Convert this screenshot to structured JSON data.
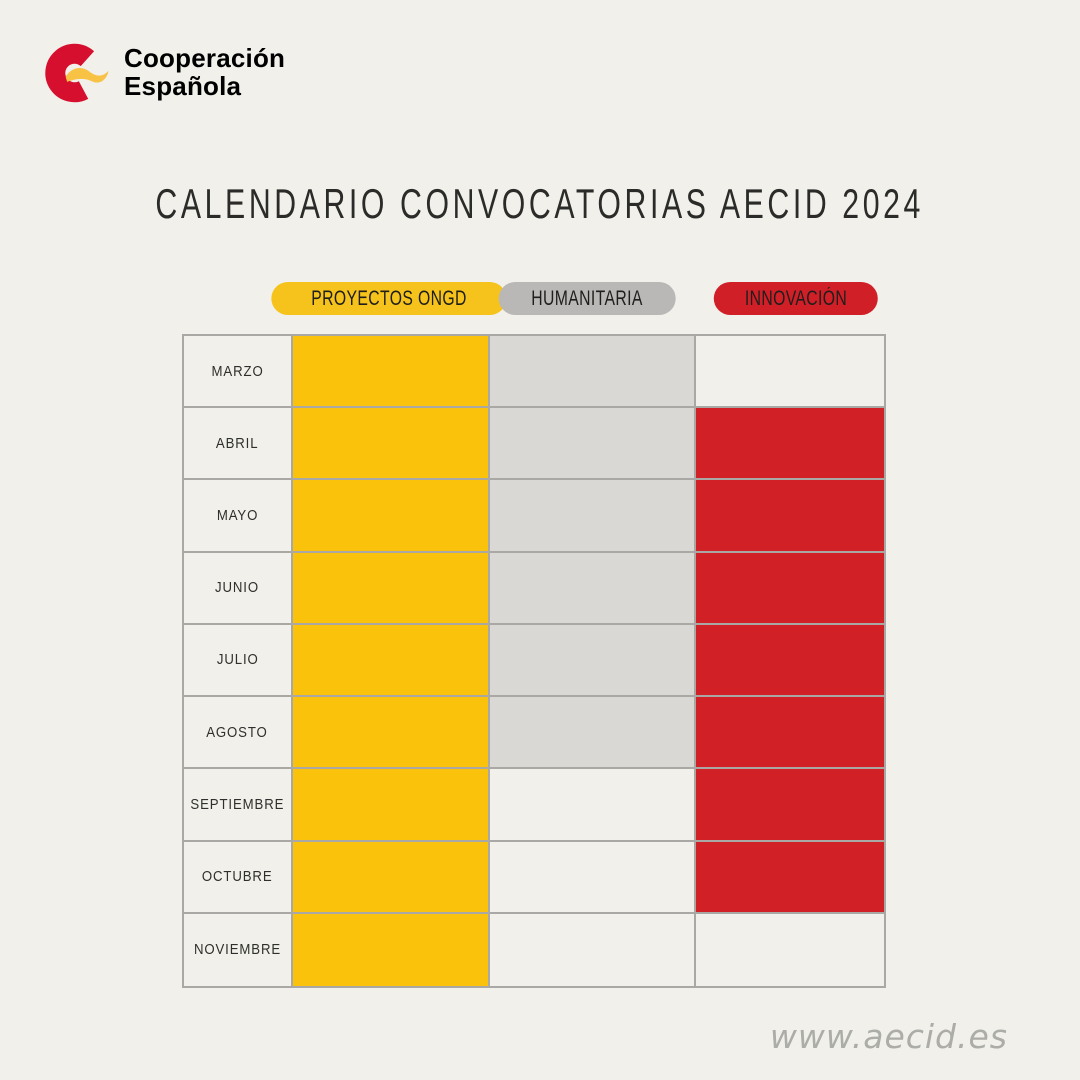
{
  "page": {
    "background": "#F1F0EA"
  },
  "header": {
    "logo": {
      "brand_line1": "Cooperación",
      "brand_line2": "Española",
      "c_red": "#D60F2F",
      "flag_yellow": "#F8C245",
      "text_red": "#D4143A"
    }
  },
  "title": {
    "text": "CALENDARIO CONVOCATORIAS AECID 2024"
  },
  "legend": {
    "items": [
      {
        "label": "PROYECTOS ONGD",
        "color": "#F5C31B"
      },
      {
        "label": "HUMANITARIA",
        "color": "#B9B8B6"
      },
      {
        "label": "INNOVACIÓN",
        "color": "#D11F28"
      }
    ]
  },
  "footer": {
    "website": "www.aecid.es"
  },
  "chart_data": {
    "type": "table",
    "title": "CALENDARIO CONVOCATORIAS AECID 2024",
    "categories": [
      "MARZO",
      "ABRIL",
      "MAYO",
      "JUNIO",
      "JULIO",
      "AGOSTO",
      "SEPTIEMBRE",
      "OCTUBRE",
      "NOVIEMBRE"
    ],
    "series": [
      {
        "name": "PROYECTOS ONGD",
        "color": "#FBC20C",
        "active_months": [
          "MARZO",
          "ABRIL",
          "MAYO",
          "JUNIO",
          "JULIO",
          "AGOSTO",
          "SEPTIEMBRE",
          "OCTUBRE",
          "NOVIEMBRE"
        ]
      },
      {
        "name": "HUMANITARIA",
        "color": "#D9D8D5",
        "active_months": [
          "MARZO",
          "ABRIL",
          "MAYO",
          "JUNIO",
          "JULIO",
          "AGOSTO"
        ]
      },
      {
        "name": "INNOVACIÓN",
        "color": "#D22027",
        "active_months": [
          "ABRIL",
          "MAYO",
          "JUNIO",
          "JULIO",
          "AGOSTO",
          "SEPTIEMBRE",
          "OCTUBRE"
        ]
      }
    ],
    "layout": {
      "grid": true,
      "legend_position": "top",
      "border_color": "#A9A8A5"
    }
  }
}
